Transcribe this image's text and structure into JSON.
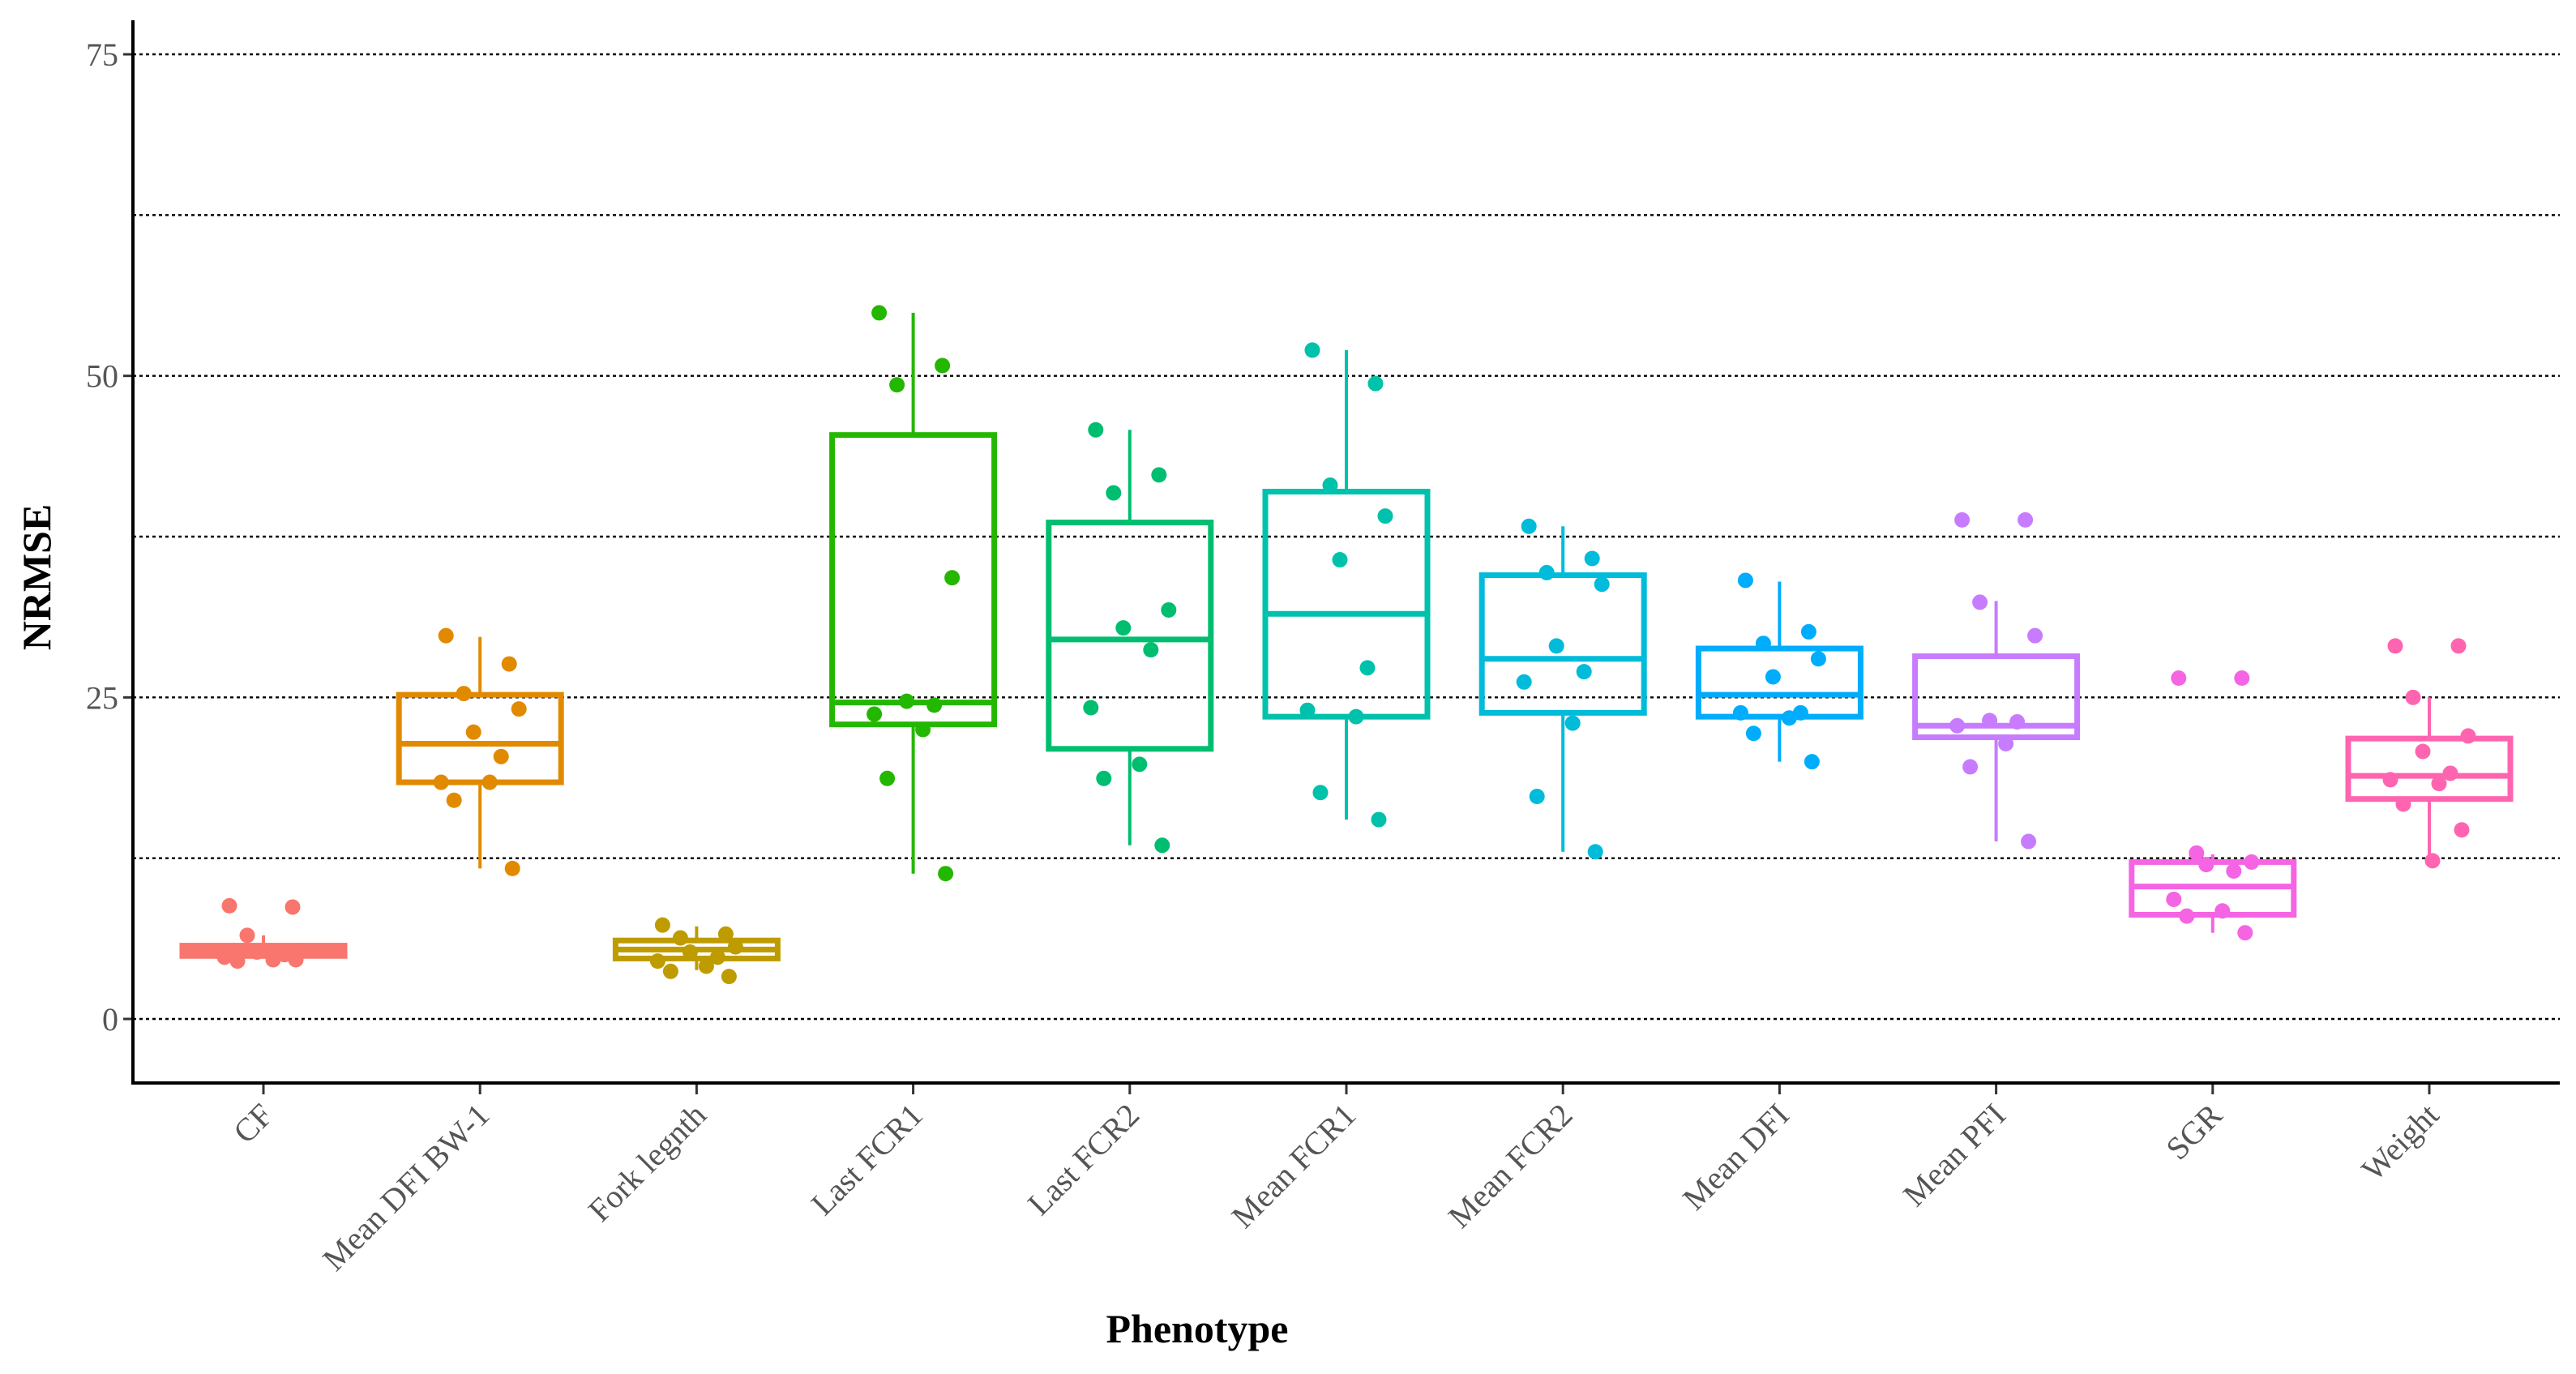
{
  "chart_data": {
    "type": "box",
    "xlabel": "Phenotype",
    "ylabel": "NRMSE",
    "ylim": [
      -4,
      77
    ],
    "yticks": [
      0,
      25,
      50,
      75
    ],
    "ytick_labels": [
      "0",
      "25",
      "50",
      "75"
    ],
    "grid_lines": [
      0,
      12.5,
      25,
      37.5,
      50,
      62.5,
      75
    ],
    "grid": "horizontal dotted",
    "legend": "none",
    "categories": [
      "CF",
      "Mean DFI BW-1",
      "Fork legnth",
      "Last FCR1",
      "Last FCR2",
      "Mean FCR1",
      "Mean FCR2",
      "Mean DFI",
      "Mean PFI",
      "SGR",
      "Weight"
    ],
    "series": [
      {
        "category": "CF",
        "color": "#F8766D",
        "box": {
          "min": 4.7,
          "q1": 4.9,
          "median": 5.3,
          "q3": 5.7,
          "max": 6.5
        },
        "points": [
          8.8,
          8.7,
          6.5,
          5.3,
          5.2,
          5.0,
          4.8,
          4.6,
          4.5,
          4.6
        ]
      },
      {
        "category": "Mean DFI BW-1",
        "color": "#E18A00",
        "box": {
          "min": 11.7,
          "q1": 18.4,
          "median": 21.4,
          "q3": 25.2,
          "max": 29.7
        },
        "points": [
          29.8,
          27.6,
          25.3,
          24.1,
          22.3,
          20.4,
          18.4,
          18.4,
          17.0,
          11.7
        ]
      },
      {
        "category": "Fork legnth",
        "color": "#BE9C00",
        "box": {
          "min": 3.8,
          "q1": 4.7,
          "median": 5.4,
          "q3": 6.1,
          "max": 7.2
        },
        "points": [
          7.3,
          6.6,
          6.3,
          5.6,
          5.2,
          4.8,
          4.5,
          4.1,
          3.7,
          3.3
        ]
      },
      {
        "category": "Last FCR1",
        "color": "#24B700",
        "box": {
          "min": 11.3,
          "q1": 22.9,
          "median": 24.6,
          "q3": 45.4,
          "max": 54.9
        },
        "points": [
          54.9,
          50.8,
          49.3,
          34.3,
          24.7,
          24.4,
          23.7,
          22.5,
          18.7,
          11.3
        ]
      },
      {
        "category": "Last FCR2",
        "color": "#00BE70",
        "box": {
          "min": 13.5,
          "q1": 21.0,
          "median": 29.5,
          "q3": 38.6,
          "max": 45.8
        },
        "points": [
          45.8,
          42.3,
          40.9,
          31.8,
          30.4,
          28.7,
          24.2,
          19.8,
          18.7,
          13.5
        ]
      },
      {
        "category": "Mean FCR1",
        "color": "#00C1AB",
        "box": {
          "min": 15.5,
          "q1": 23.5,
          "median": 31.5,
          "q3": 41.0,
          "max": 52.0
        },
        "points": [
          52.0,
          49.4,
          41.5,
          39.1,
          35.7,
          27.3,
          24.0,
          23.5,
          17.6,
          15.5
        ]
      },
      {
        "category": "Mean FCR2",
        "color": "#00BBDA",
        "box": {
          "min": 13.0,
          "q1": 23.8,
          "median": 28.0,
          "q3": 34.5,
          "max": 38.3
        },
        "points": [
          38.3,
          35.8,
          34.7,
          33.8,
          29.0,
          27.0,
          26.2,
          23.0,
          17.3,
          13.0
        ]
      },
      {
        "category": "Mean DFI",
        "color": "#00ACFC",
        "box": {
          "min": 20.0,
          "q1": 23.5,
          "median": 25.2,
          "q3": 28.8,
          "max": 34.0
        },
        "points": [
          34.1,
          30.1,
          29.2,
          28.0,
          26.6,
          23.8,
          23.8,
          23.4,
          22.2,
          20.0
        ]
      },
      {
        "category": "Mean PFI",
        "color": "#C77CFF",
        "box": {
          "min": 13.8,
          "q1": 21.9,
          "median": 22.8,
          "q3": 28.2,
          "max": 32.5
        },
        "points": [
          38.8,
          38.8,
          32.4,
          29.8,
          23.2,
          23.1,
          22.8,
          21.4,
          19.6,
          13.8
        ]
      },
      {
        "category": "SGR",
        "color": "#F564E3",
        "box": {
          "min": 6.7,
          "q1": 8.1,
          "median": 10.3,
          "q3": 12.2,
          "max": 12.8
        },
        "points": [
          26.5,
          26.5,
          12.9,
          12.2,
          12.0,
          11.5,
          9.3,
          8.4,
          8.0,
          6.7
        ]
      },
      {
        "category": "Weight",
        "color": "#FF64B0",
        "box": {
          "min": 12.3,
          "q1": 17.1,
          "median": 18.9,
          "q3": 21.8,
          "max": 25.0
        },
        "points": [
          29.0,
          29.0,
          25.0,
          22.0,
          20.8,
          19.1,
          18.6,
          18.3,
          16.7,
          14.7,
          12.3
        ]
      }
    ]
  }
}
